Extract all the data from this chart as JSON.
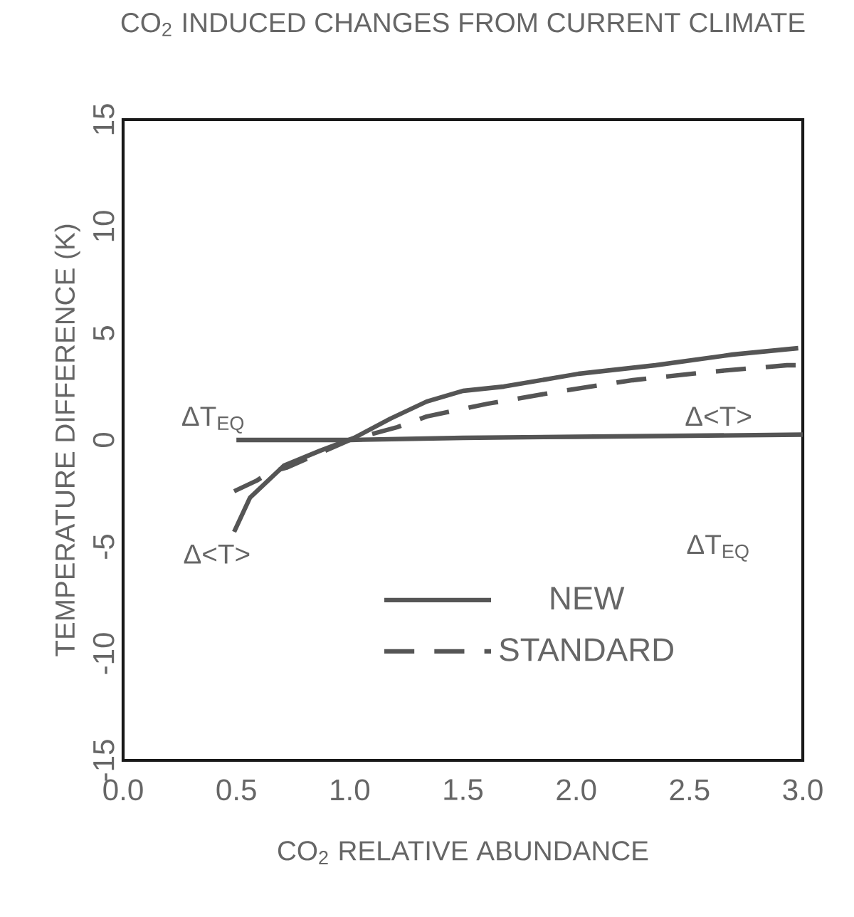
{
  "chart_data": {
    "type": "line",
    "title": "CO$_{2}$ INDUCED CHANGES FROM CURRENT CLIMATE",
    "xlabel": "CO$_{2}$ RELATIVE ABUNDANCE",
    "ylabel": "TEMPERATURE DIFFERENCE (K)",
    "xlim": [
      0,
      3
    ],
    "ylim": [
      -15,
      15
    ],
    "xticks": [
      {
        "value": 0,
        "label": "0.0"
      },
      {
        "value": 0.5,
        "label": "0.5"
      },
      {
        "value": 1,
        "label": "1.0"
      },
      {
        "value": 1.5,
        "label": "1.5"
      },
      {
        "value": 2,
        "label": "2.0"
      },
      {
        "value": 2.5,
        "label": "2.5"
      },
      {
        "value": 3,
        "label": "3.0"
      }
    ],
    "yticks": [
      -15,
      -10,
      -5,
      0,
      5,
      10,
      15
    ],
    "grid": false,
    "legend": "bottom",
    "marker": "none",
    "series": [
      {
        "color": "#555555",
        "line_style": "solid",
        "x": [
          0.5,
          1.0,
          1.5,
          2.0,
          2.5,
          3.0
        ],
        "values": [
          0,
          0,
          0.1,
          0.15,
          0.2,
          0.25
        ]
      },
      {
        "name": "NEW",
        "color": "#555555",
        "line_style": "solid",
        "x": [
          0.49,
          0.56,
          0.71,
          0.87,
          1.02,
          1.18,
          1.34,
          1.5,
          1.68,
          2.01,
          2.35,
          2.69,
          2.98
        ],
        "values": [
          -4.3,
          -2.7,
          -1.2,
          -0.5,
          0.1,
          1.0,
          1.8,
          2.3,
          2.5,
          3.1,
          3.5,
          4.0,
          4.3
        ]
      },
      {
        "name": "STANDARD",
        "color": "#555555",
        "line_style": "dashed",
        "x": [
          0.49,
          0.59,
          0.65,
          0.72,
          1.0,
          1.21,
          1.34,
          1.61,
          1.94,
          2.25,
          2.6,
          2.93,
          3.0
        ],
        "values": [
          -2.4,
          -1.9,
          -1.5,
          -1.3,
          0,
          0.6,
          1.1,
          1.7,
          2.3,
          2.8,
          3.2,
          3.5,
          3.5
        ]
      }
    ],
    "annotations": [
      "ΔT$_{EQ}$",
      "Δ<T>",
      "Δ<T>",
      "ΔT$_{EQ}$"
    ]
  }
}
